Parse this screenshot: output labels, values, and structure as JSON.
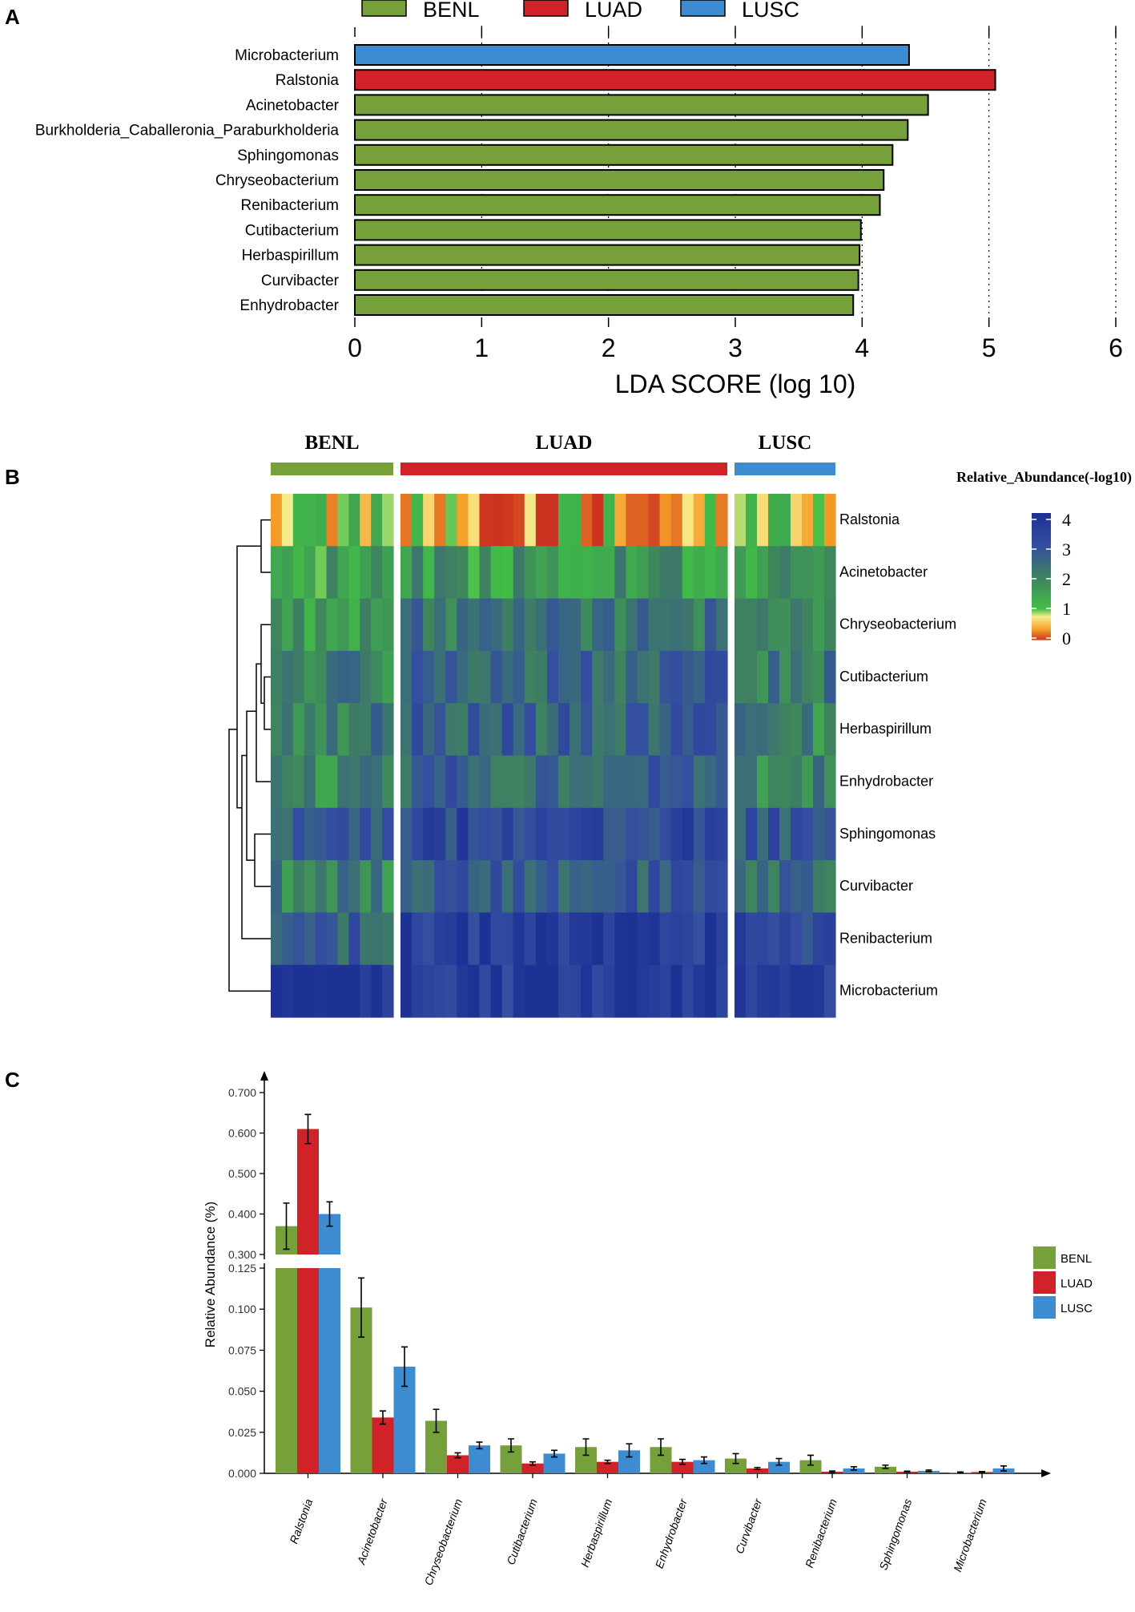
{
  "panels": {
    "a": "A",
    "b": "B",
    "c": "C"
  },
  "colors": {
    "BENL": "#76a03a",
    "LUAD": "#d12229",
    "LUSC": "#3d8cd1",
    "frame": "#000000"
  },
  "chart_data": [
    {
      "id": "A",
      "type": "bar",
      "orientation": "horizontal",
      "title": "",
      "xlabel": "LDA SCORE (log 10)",
      "ylabel": "",
      "xlim": [
        0,
        6
      ],
      "xticks": [
        "0",
        "1",
        "2",
        "3",
        "4",
        "5",
        "6"
      ],
      "gridlines": "dotted vertical at each tick",
      "legend": {
        "position": "top",
        "entries": [
          "BENL",
          "LUAD",
          "LUSC"
        ]
      },
      "categories": [
        "Microbacterium",
        "Ralstonia",
        "Acinetobacter",
        "Burkholderia_Caballeronia_Paraburkholderia",
        "Sphingomonas",
        "Chryseobacterium",
        "Renibacterium",
        "Cutibacterium",
        "Herbaspirillum",
        "Curvibacter",
        "Enhydrobacter"
      ],
      "groups": [
        "LUSC",
        "LUAD",
        "BENL",
        "BENL",
        "BENL",
        "BENL",
        "BENL",
        "BENL",
        "BENL",
        "BENL",
        "BENL"
      ],
      "values": [
        4.37,
        5.05,
        4.52,
        4.36,
        4.24,
        4.17,
        4.14,
        3.99,
        3.98,
        3.97,
        3.93
      ]
    },
    {
      "id": "B",
      "type": "heatmap",
      "title": "",
      "column_groups": [
        {
          "name": "BENL",
          "columns": 11
        },
        {
          "name": "LUAD",
          "columns": 29
        },
        {
          "name": "LUSC",
          "columns": 9
        }
      ],
      "row_order": [
        "Ralstonia",
        "Acinetobacter",
        "Chryseobacterium",
        "Cutibacterium",
        "Herbaspirillum",
        "Enhydrobacter",
        "Sphingomonas",
        "Curvibacter",
        "Renibacterium",
        "Microbacterium"
      ],
      "colorbar": {
        "title": "Relative_Abundance(-log10)",
        "range": [
          0,
          4
        ],
        "ticks": [
          "4",
          "3",
          "2",
          "1",
          "0"
        ]
      },
      "row_base_values": [
        {
          "BENL": 0.75,
          "LUAD": 0.55,
          "LUSC": 0.75
        },
        {
          "BENL": 1.5,
          "LUAD": 1.6,
          "LUSC": 1.55
        },
        {
          "BENL": 1.7,
          "LUAD": 2.3,
          "LUSC": 2.0
        },
        {
          "BENL": 2.0,
          "LUAD": 2.55,
          "LUSC": 2.2
        },
        {
          "BENL": 2.1,
          "LUAD": 2.6,
          "LUSC": 1.95
        },
        {
          "BENL": 2.0,
          "LUAD": 2.6,
          "LUSC": 2.0
        },
        {
          "BENL": 2.5,
          "LUAD": 3.3,
          "LUSC": 2.95
        },
        {
          "BENL": 2.1,
          "LUAD": 2.7,
          "LUSC": 2.4
        },
        {
          "BENL": 2.8,
          "LUAD": 3.6,
          "LUSC": 3.3
        },
        {
          "BENL": 3.95,
          "LUAD": 3.6,
          "LUSC": 3.5
        }
      ]
    },
    {
      "id": "C",
      "type": "bar",
      "orientation": "vertical",
      "title": "",
      "xlabel": "",
      "ylabel": "Relative Abundance (%)",
      "axis_break": {
        "lower": [
          0,
          0.125
        ],
        "upper": [
          0.3,
          0.7
        ]
      },
      "yticks_lower": [
        "0.000",
        "0.025",
        "0.050",
        "0.075",
        "0.100",
        "0.125"
      ],
      "yticks_upper": [
        "0.300",
        "0.400",
        "0.500",
        "0.600",
        "0.700"
      ],
      "legend": {
        "position": "right",
        "entries": [
          "BENL",
          "LUAD",
          "LUSC"
        ]
      },
      "categories": [
        "Ralstonia",
        "Acinetobacter",
        "Chryseobacterium",
        "Cutibacterium",
        "Herbaspirillum",
        "Enhydrobacter",
        "Curvibacter",
        "Renibacterium",
        "Sphingomonas",
        "Microbacterium"
      ],
      "series": [
        {
          "name": "BENL",
          "values": [
            0.37,
            0.101,
            0.032,
            0.017,
            0.016,
            0.016,
            0.009,
            0.008,
            0.004,
            0.0005
          ],
          "errors": [
            0.057,
            0.018,
            0.007,
            0.004,
            0.005,
            0.005,
            0.003,
            0.003,
            0.001,
            0.0003
          ]
        },
        {
          "name": "LUAD",
          "values": [
            0.61,
            0.034,
            0.011,
            0.006,
            0.007,
            0.007,
            0.003,
            0.001,
            0.001,
            0.0008
          ],
          "errors": [
            0.036,
            0.004,
            0.0015,
            0.001,
            0.001,
            0.0015,
            0.0006,
            0.0004,
            0.0003,
            0.0003
          ]
        },
        {
          "name": "LUSC",
          "values": [
            0.4,
            0.065,
            0.017,
            0.012,
            0.014,
            0.008,
            0.007,
            0.003,
            0.0015,
            0.003
          ],
          "errors": [
            0.03,
            0.012,
            0.002,
            0.002,
            0.004,
            0.002,
            0.002,
            0.001,
            0.0005,
            0.0015
          ]
        }
      ]
    }
  ]
}
